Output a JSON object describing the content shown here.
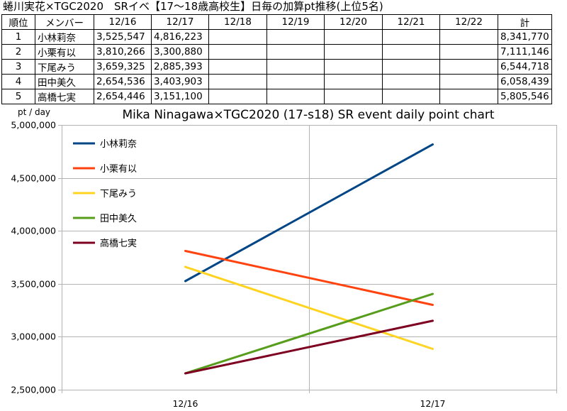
{
  "page_title": "蜷川実花×TGC2020　SRイベ【17～18歳高校生】日毎の加算pt推移(上位5名)",
  "table": {
    "headers": [
      "順位",
      "メンバー",
      "12/16",
      "12/17",
      "12/18",
      "12/19",
      "12/20",
      "12/21",
      "12/22",
      "計"
    ],
    "rows": [
      {
        "rank": "1",
        "member": "小林莉奈",
        "d1216": "3,525,547",
        "d1217": "4,816,223",
        "total": "8,341,770"
      },
      {
        "rank": "2",
        "member": "小栗有以",
        "d1216": "3,810,266",
        "d1217": "3,300,880",
        "total": "7,111,146"
      },
      {
        "rank": "3",
        "member": "下尾みう",
        "d1216": "3,659,325",
        "d1217": "2,885,393",
        "total": "6,544,718"
      },
      {
        "rank": "4",
        "member": "田中美久",
        "d1216": "2,654,536",
        "d1217": "3,403,903",
        "total": "6,058,439"
      },
      {
        "rank": "5",
        "member": "高橋七実",
        "d1216": "2,654,446",
        "d1217": "3,151,100",
        "total": "5,805,546"
      }
    ]
  },
  "chart_data": {
    "type": "line",
    "title": "Mika Ninagawa×TGC2020 (17-s18) SR event daily point chart",
    "ylabel": "pt / day",
    "xlabel": "",
    "categories": [
      "12/16",
      "12/17"
    ],
    "ylim": [
      2500000,
      5000000
    ],
    "yticks": [
      "5,000,000",
      "4,500,000",
      "4,000,000",
      "3,500,000",
      "3,000,000",
      "2,500,000"
    ],
    "ytick_values": [
      5000000,
      4500000,
      4000000,
      3500000,
      3000000,
      2500000
    ],
    "grid": true,
    "legend_position": "top-left",
    "series": [
      {
        "name": "小林莉奈",
        "color": "#004586",
        "values": [
          3525547,
          4816223
        ]
      },
      {
        "name": "小栗有以",
        "color": "#ff420e",
        "values": [
          3810266,
          3300880
        ]
      },
      {
        "name": "下尾みう",
        "color": "#ffd320",
        "values": [
          3659325,
          2885393
        ]
      },
      {
        "name": "田中美久",
        "color": "#579d1c",
        "values": [
          2654536,
          3403903
        ]
      },
      {
        "name": "高橋七実",
        "color": "#7e0021",
        "values": [
          2654446,
          3151100
        ]
      }
    ]
  }
}
